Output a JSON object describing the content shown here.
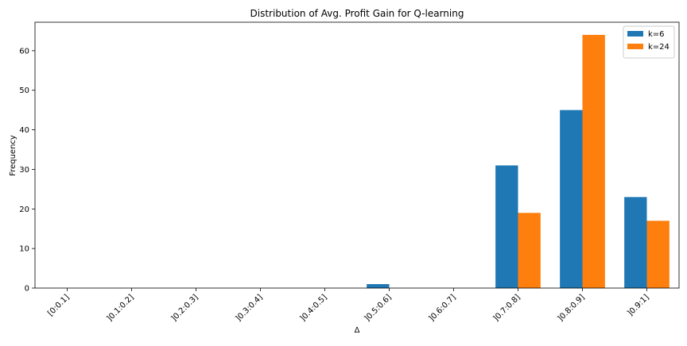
{
  "chart_data": {
    "type": "bar",
    "title": "Distribution of Avg. Profit Gain for Q-learning",
    "xlabel": "Δ",
    "ylabel": "Frequency",
    "categories": [
      "[0:0.1]",
      "]0.1:0.2]",
      "]0.2:0.3]",
      "]0.3:0.4]",
      "]0.4:0.5]",
      "]0.5:0.6]",
      "]0.6:0.7]",
      "]0.7:0.8]",
      "]0.8:0.9]",
      "]0.9:1]"
    ],
    "series": [
      {
        "name": "k=6",
        "color": "#1f77b4",
        "values": [
          0,
          0,
          0,
          0,
          0,
          1,
          0,
          31,
          45,
          23
        ]
      },
      {
        "name": "k=24",
        "color": "#ff7f0e",
        "values": [
          0,
          0,
          0,
          0,
          0,
          0,
          0,
          19,
          64,
          17
        ]
      }
    ],
    "ylim": [
      0,
      67.2
    ],
    "yticks": [
      0,
      10,
      20,
      30,
      40,
      50,
      60
    ],
    "grid": false,
    "legend_position": "top-right"
  }
}
